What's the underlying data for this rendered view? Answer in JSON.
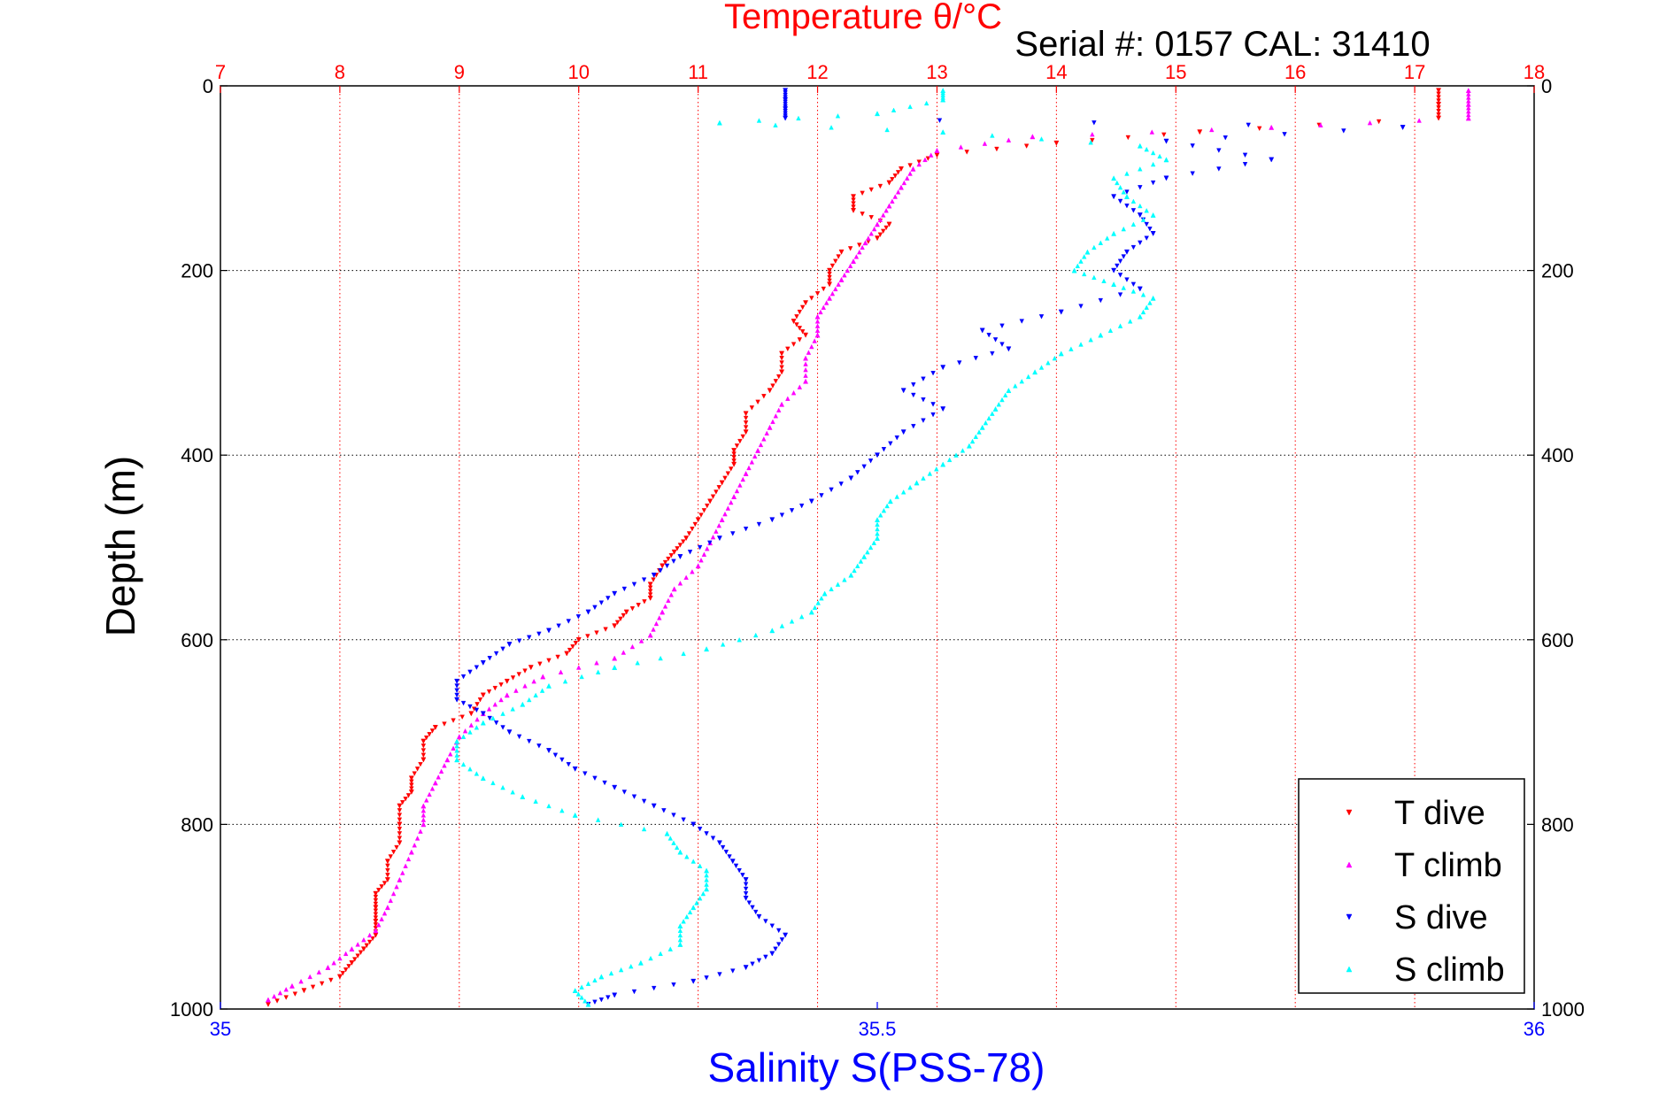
{
  "chart_data": {
    "type": "scatter",
    "title": "Temperature θ/°C",
    "subtitle": "Serial #: 0157  CAL: 31410",
    "xlabel_top": "Temperature θ/°C",
    "xlabel_bottom": "Salinity S(PSS-78)",
    "ylabel": "Depth (m)",
    "temperature_axis": {
      "range": [
        7,
        18
      ],
      "ticks": [
        "7",
        "8",
        "9",
        "10",
        "11",
        "12",
        "13",
        "14",
        "15",
        "16",
        "17",
        "18"
      ],
      "color": "#ff0000"
    },
    "salinity_axis": {
      "range": [
        35,
        36
      ],
      "ticks": [
        "35",
        "35.5",
        "36"
      ],
      "color": "#0000ff"
    },
    "depth_axis": {
      "range": [
        0,
        1000
      ],
      "reversed": true,
      "ticks": [
        "0",
        "200",
        "400",
        "600",
        "800",
        "1000"
      ]
    },
    "grid": true,
    "legend_position": "bottom-right",
    "series": [
      {
        "name": "T dive",
        "axis": "temperature",
        "marker": "triangle-down",
        "color": "#ff0000",
        "points": [
          [
            17.2,
            5
          ],
          [
            17.2,
            20
          ],
          [
            17.2,
            35
          ],
          [
            15.2,
            50
          ],
          [
            14.0,
            62
          ],
          [
            13.0,
            75
          ],
          [
            12.7,
            90
          ],
          [
            12.6,
            105
          ],
          [
            12.3,
            120
          ],
          [
            12.3,
            135
          ],
          [
            12.6,
            150
          ],
          [
            12.5,
            165
          ],
          [
            12.2,
            180
          ],
          [
            12.1,
            200
          ],
          [
            12.1,
            215
          ],
          [
            11.9,
            235
          ],
          [
            11.8,
            255
          ],
          [
            11.9,
            270
          ],
          [
            11.7,
            290
          ],
          [
            11.7,
            310
          ],
          [
            11.6,
            330
          ],
          [
            11.4,
            355
          ],
          [
            11.4,
            375
          ],
          [
            11.3,
            395
          ],
          [
            11.3,
            410
          ],
          [
            11.2,
            430
          ],
          [
            11.1,
            450
          ],
          [
            11.0,
            470
          ],
          [
            10.9,
            490
          ],
          [
            10.8,
            505
          ],
          [
            10.7,
            520
          ],
          [
            10.6,
            540
          ],
          [
            10.6,
            555
          ],
          [
            10.4,
            570
          ],
          [
            10.3,
            585
          ],
          [
            10.0,
            600
          ],
          [
            9.9,
            615
          ],
          [
            9.6,
            630
          ],
          [
            9.4,
            645
          ],
          [
            9.2,
            660
          ],
          [
            9.1,
            680
          ],
          [
            8.8,
            695
          ],
          [
            8.7,
            710
          ],
          [
            8.7,
            730
          ],
          [
            8.6,
            750
          ],
          [
            8.6,
            765
          ],
          [
            8.5,
            780
          ],
          [
            8.5,
            800
          ],
          [
            8.5,
            820
          ],
          [
            8.4,
            840
          ],
          [
            8.4,
            860
          ],
          [
            8.3,
            875
          ],
          [
            8.3,
            890
          ],
          [
            8.3,
            905
          ],
          [
            8.3,
            920
          ],
          [
            8.2,
            935
          ],
          [
            8.1,
            950
          ],
          [
            8.0,
            965
          ],
          [
            7.7,
            980
          ],
          [
            7.4,
            995
          ]
        ]
      },
      {
        "name": "T climb",
        "axis": "temperature",
        "marker": "triangle-up",
        "color": "#ff00ff",
        "points": [
          [
            17.45,
            5
          ],
          [
            17.45,
            20
          ],
          [
            17.45,
            35
          ],
          [
            15.8,
            45
          ],
          [
            13.8,
            55
          ],
          [
            13.0,
            70
          ],
          [
            12.8,
            90
          ],
          [
            12.7,
            110
          ],
          [
            12.6,
            130
          ],
          [
            12.5,
            150
          ],
          [
            12.4,
            170
          ],
          [
            12.3,
            190
          ],
          [
            12.2,
            210
          ],
          [
            12.1,
            230
          ],
          [
            12.0,
            250
          ],
          [
            12.0,
            270
          ],
          [
            11.9,
            295
          ],
          [
            11.9,
            320
          ],
          [
            11.7,
            345
          ],
          [
            11.6,
            370
          ],
          [
            11.5,
            395
          ],
          [
            11.4,
            420
          ],
          [
            11.3,
            445
          ],
          [
            11.2,
            470
          ],
          [
            11.1,
            495
          ],
          [
            11.0,
            520
          ],
          [
            10.8,
            545
          ],
          [
            10.7,
            570
          ],
          [
            10.6,
            595
          ],
          [
            10.3,
            620
          ],
          [
            9.7,
            640
          ],
          [
            9.4,
            660
          ],
          [
            9.2,
            680
          ],
          [
            9.0,
            705
          ],
          [
            8.9,
            730
          ],
          [
            8.8,
            755
          ],
          [
            8.7,
            780
          ],
          [
            8.7,
            800
          ],
          [
            8.6,
            830
          ],
          [
            8.5,
            860
          ],
          [
            8.4,
            890
          ],
          [
            8.3,
            915
          ],
          [
            8.1,
            935
          ],
          [
            7.9,
            955
          ],
          [
            7.6,
            975
          ],
          [
            7.4,
            990
          ]
        ]
      },
      {
        "name": "S dive",
        "axis": "salinity",
        "marker": "triangle-down",
        "color": "#0000ff",
        "points": [
          [
            35.43,
            5
          ],
          [
            35.43,
            15
          ],
          [
            35.43,
            25
          ],
          [
            35.43,
            35
          ],
          [
            35.9,
            45
          ],
          [
            35.72,
            60
          ],
          [
            35.8,
            80
          ],
          [
            35.72,
            100
          ],
          [
            35.68,
            120
          ],
          [
            35.7,
            140
          ],
          [
            35.71,
            160
          ],
          [
            35.69,
            180
          ],
          [
            35.68,
            200
          ],
          [
            35.7,
            220
          ],
          [
            35.64,
            245
          ],
          [
            35.58,
            265
          ],
          [
            35.6,
            285
          ],
          [
            35.55,
            305
          ],
          [
            35.52,
            330
          ],
          [
            35.55,
            350
          ],
          [
            35.52,
            375
          ],
          [
            35.5,
            400
          ],
          [
            35.48,
            425
          ],
          [
            35.45,
            450
          ],
          [
            35.42,
            470
          ],
          [
            35.38,
            490
          ],
          [
            35.35,
            510
          ],
          [
            35.33,
            530
          ],
          [
            35.3,
            550
          ],
          [
            35.28,
            570
          ],
          [
            35.25,
            590
          ],
          [
            35.22,
            605
          ],
          [
            35.2,
            625
          ],
          [
            35.18,
            645
          ],
          [
            35.18,
            665
          ],
          [
            35.2,
            680
          ],
          [
            35.22,
            700
          ],
          [
            35.25,
            720
          ],
          [
            35.27,
            740
          ],
          [
            35.3,
            760
          ],
          [
            35.33,
            780
          ],
          [
            35.36,
            800
          ],
          [
            35.38,
            820
          ],
          [
            35.39,
            840
          ],
          [
            35.4,
            860
          ],
          [
            35.4,
            880
          ],
          [
            35.41,
            900
          ],
          [
            35.43,
            920
          ],
          [
            35.42,
            940
          ],
          [
            35.4,
            955
          ],
          [
            35.36,
            970
          ],
          [
            35.3,
            985
          ],
          [
            35.28,
            995
          ]
        ]
      },
      {
        "name": "S climb",
        "axis": "salinity",
        "marker": "triangle-up",
        "color": "#00ffff",
        "points": [
          [
            35.55,
            5
          ],
          [
            35.55,
            15
          ],
          [
            35.5,
            30
          ],
          [
            35.38,
            40
          ],
          [
            35.55,
            50
          ],
          [
            35.7,
            65
          ],
          [
            35.72,
            80
          ],
          [
            35.68,
            100
          ],
          [
            35.69,
            120
          ],
          [
            35.71,
            140
          ],
          [
            35.68,
            160
          ],
          [
            35.66,
            180
          ],
          [
            35.65,
            200
          ],
          [
            35.68,
            215
          ],
          [
            35.71,
            230
          ],
          [
            35.7,
            250
          ],
          [
            35.67,
            270
          ],
          [
            35.64,
            290
          ],
          [
            35.62,
            310
          ],
          [
            35.6,
            330
          ],
          [
            35.59,
            350
          ],
          [
            35.58,
            370
          ],
          [
            35.57,
            390
          ],
          [
            35.55,
            410
          ],
          [
            35.53,
            430
          ],
          [
            35.51,
            450
          ],
          [
            35.5,
            470
          ],
          [
            35.5,
            490
          ],
          [
            35.49,
            510
          ],
          [
            35.48,
            530
          ],
          [
            35.46,
            550
          ],
          [
            35.45,
            570
          ],
          [
            35.42,
            590
          ],
          [
            35.37,
            610
          ],
          [
            35.3,
            630
          ],
          [
            35.25,
            650
          ],
          [
            35.23,
            670
          ],
          [
            35.2,
            690
          ],
          [
            35.18,
            710
          ],
          [
            35.18,
            730
          ],
          [
            35.2,
            750
          ],
          [
            35.23,
            770
          ],
          [
            35.27,
            790
          ],
          [
            35.34,
            810
          ],
          [
            35.35,
            830
          ],
          [
            35.37,
            850
          ],
          [
            35.37,
            870
          ],
          [
            35.36,
            890
          ],
          [
            35.35,
            910
          ],
          [
            35.35,
            930
          ],
          [
            35.32,
            950
          ],
          [
            35.29,
            965
          ],
          [
            35.27,
            980
          ],
          [
            35.28,
            995
          ]
        ]
      }
    ]
  }
}
